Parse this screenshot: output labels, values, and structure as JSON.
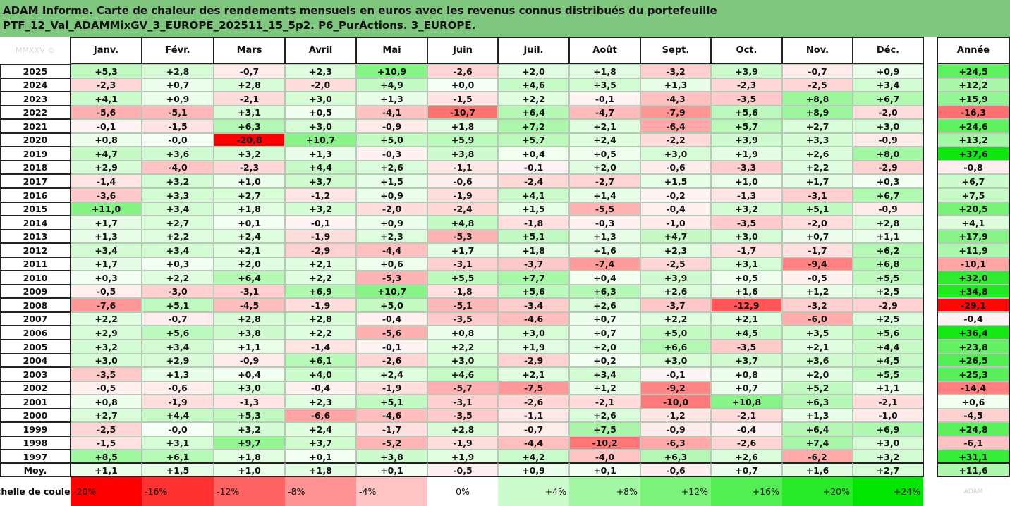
{
  "title": {
    "line1": "ADAM Informe. Carte de chaleur des rendements mensuels en euros avec les revenus connus distribués du portefeuille",
    "line2": "PTF_12_Val_ADAMMixGV_3_EUROPE_202511_15_5p2. P6_PurActions. 3_EUROPE."
  },
  "corner_label": "MMXXV ©",
  "months": [
    "Janv.",
    "Févr.",
    "Mars",
    "Avril",
    "Mai",
    "Juin",
    "Juil.",
    "Août",
    "Sept.",
    "Oct.",
    "Nov.",
    "Déc."
  ],
  "year_header": "Année",
  "avg_label": "Moy.",
  "scale_label": "Echelle de couleur",
  "logo_text": "ADAM",
  "colors": {
    "neg_max": "#ff0000",
    "neutral": "#ffffff",
    "pos_max": "#00e000",
    "header_bg": "#7fc77f"
  },
  "chart_data": {
    "type": "heatmap",
    "x_categories": [
      "Janv.",
      "Févr.",
      "Mars",
      "Avril",
      "Mai",
      "Juin",
      "Juil.",
      "Août",
      "Sept.",
      "Oct.",
      "Nov.",
      "Déc.",
      "Année"
    ],
    "rows": [
      {
        "label": "2025",
        "values": [
          "+5,3",
          "+2,8",
          "-0,7",
          "+2,3",
          "+10,9",
          "-2,6",
          "+2,0",
          "+1,8",
          "-3,2",
          "+3,9",
          "-0,7",
          "+0,9",
          "+24,5"
        ]
      },
      {
        "label": "2024",
        "values": [
          "-2,3",
          "+0,7",
          "+2,8",
          "-2,0",
          "+4,9",
          "+0,0",
          "+4,6",
          "+3,5",
          "+1,3",
          "-2,3",
          "-2,5",
          "+3,4",
          "+12,2"
        ]
      },
      {
        "label": "2023",
        "values": [
          "+4,1",
          "+0,9",
          "-2,1",
          "+3,0",
          "+1,3",
          "-1,5",
          "+2,2",
          "-0,1",
          "-4,3",
          "-3,5",
          "+8,8",
          "+6,7",
          "+15,9"
        ]
      },
      {
        "label": "2022",
        "values": [
          "-5,6",
          "-5,1",
          "+3,1",
          "+0,5",
          "-4,1",
          "-10,7",
          "+6,4",
          "-4,7",
          "-7,9",
          "+5,6",
          "+8,9",
          "-2,0",
          "-16,3"
        ]
      },
      {
        "label": "2021",
        "values": [
          "-0,1",
          "-1,5",
          "+6,3",
          "+3,0",
          "-0,9",
          "+1,8",
          "+7,2",
          "+2,1",
          "-6,4",
          "+5,7",
          "+2,7",
          "+3,0",
          "+24,6"
        ]
      },
      {
        "label": "2020",
        "values": [
          "+0,8",
          "-0,0",
          "-20,8",
          "+10,7",
          "+5,0",
          "+5,9",
          "+5,7",
          "+2,4",
          "-2,2",
          "+3,9",
          "+3,3",
          "-0,9",
          "+13,2"
        ]
      },
      {
        "label": "2019",
        "values": [
          "+4,7",
          "+3,6",
          "+3,2",
          "+1,3",
          "-0,3",
          "+3,8",
          "+0,4",
          "+0,5",
          "+3,0",
          "+1,9",
          "+2,6",
          "+8,0",
          "+37,6"
        ]
      },
      {
        "label": "2018",
        "values": [
          "+2,9",
          "-4,0",
          "-2,3",
          "+4,4",
          "+2,6",
          "-1,1",
          "-0,1",
          "+2,0",
          "-0,6",
          "-3,3",
          "+2,2",
          "-2,9",
          "-0,8"
        ]
      },
      {
        "label": "2017",
        "values": [
          "-1,4",
          "+3,2",
          "+1,0",
          "+3,7",
          "+1,5",
          "-0,6",
          "-2,4",
          "-2,7",
          "+1,5",
          "+1,0",
          "+1,7",
          "+0,3",
          "+6,7"
        ]
      },
      {
        "label": "2016",
        "values": [
          "-3,6",
          "+3,3",
          "+2,7",
          "-1,2",
          "+0,9",
          "-1,9",
          "+4,1",
          "+1,4",
          "-0,2",
          "-1,3",
          "-3,1",
          "+6,7",
          "+7,5"
        ]
      },
      {
        "label": "2015",
        "values": [
          "+11,0",
          "+3,4",
          "+1,8",
          "+3,2",
          "-2,0",
          "-2,4",
          "+1,5",
          "-5,5",
          "-0,4",
          "+3,2",
          "+5,1",
          "-0,9",
          "+20,5"
        ]
      },
      {
        "label": "2014",
        "values": [
          "+1,7",
          "+2,7",
          "+0,1",
          "-0,1",
          "+0,9",
          "+4,8",
          "-1,8",
          "-0,3",
          "-1,0",
          "-3,5",
          "-2,0",
          "+2,8",
          "+4,1"
        ]
      },
      {
        "label": "2013",
        "values": [
          "+1,3",
          "+2,2",
          "+2,4",
          "-1,9",
          "+2,3",
          "-5,3",
          "+5,1",
          "+1,3",
          "+4,7",
          "+3,0",
          "+0,7",
          "+1,1",
          "+17,9"
        ]
      },
      {
        "label": "2012",
        "values": [
          "+3,4",
          "+3,4",
          "+2,1",
          "-2,9",
          "-4,4",
          "+1,7",
          "+1,8",
          "+1,6",
          "+2,3",
          "-1,7",
          "-1,7",
          "+6,2",
          "+11,9"
        ]
      },
      {
        "label": "2011",
        "values": [
          "+1,7",
          "+0,3",
          "+2,0",
          "+2,1",
          "+0,6",
          "-3,1",
          "-3,7",
          "-7,4",
          "-2,5",
          "+3,1",
          "-9,4",
          "+6,8",
          "-10,1"
        ]
      },
      {
        "label": "2010",
        "values": [
          "+0,3",
          "+2,2",
          "+6,4",
          "+2,2",
          "-5,3",
          "+5,5",
          "+7,7",
          "+0,4",
          "+3,9",
          "+0,5",
          "-0,5",
          "+5,5",
          "+32,0"
        ]
      },
      {
        "label": "2009",
        "values": [
          "-0,5",
          "-3,0",
          "-3,1",
          "+6,9",
          "+10,7",
          "-1,8",
          "+5,6",
          "+6,3",
          "+2,6",
          "+1,6",
          "+1,2",
          "+2,5",
          "+34,8"
        ]
      },
      {
        "label": "2008",
        "values": [
          "-7,6",
          "+5,1",
          "-4,5",
          "-1,9",
          "+5,0",
          "-5,1",
          "-3,4",
          "+2,6",
          "-3,7",
          "-12,9",
          "-3,2",
          "-2,9",
          "-29,1"
        ]
      },
      {
        "label": "2007",
        "values": [
          "+2,2",
          "-0,7",
          "+2,8",
          "+2,8",
          "-0,4",
          "-3,5",
          "-4,6",
          "+0,7",
          "+2,2",
          "+2,1",
          "-6,0",
          "+2,5",
          "-0,4"
        ]
      },
      {
        "label": "2006",
        "values": [
          "+2,9",
          "+5,6",
          "+3,8",
          "+2,2",
          "-5,6",
          "+0,8",
          "+3,0",
          "+0,7",
          "+5,0",
          "+4,5",
          "+3,5",
          "+5,6",
          "+36,4"
        ]
      },
      {
        "label": "2005",
        "values": [
          "+3,2",
          "+3,4",
          "+1,1",
          "-1,4",
          "-0,1",
          "+2,2",
          "+1,9",
          "+2,0",
          "+6,6",
          "-3,5",
          "+2,1",
          "+4,4",
          "+23,8"
        ]
      },
      {
        "label": "2004",
        "values": [
          "+3,0",
          "+2,9",
          "-0,9",
          "+6,1",
          "-2,6",
          "+3,0",
          "-2,9",
          "+0,2",
          "+3,0",
          "+3,7",
          "+3,6",
          "+4,5",
          "+26,5"
        ]
      },
      {
        "label": "2003",
        "values": [
          "-3,5",
          "+1,3",
          "+0,4",
          "+4,0",
          "+2,4",
          "+4,6",
          "+2,1",
          "+3,4",
          "-0,1",
          "+0,8",
          "+2,0",
          "+5,5",
          "+25,3"
        ]
      },
      {
        "label": "2002",
        "values": [
          "-0,5",
          "-0,6",
          "+3,0",
          "-0,4",
          "-1,9",
          "-5,7",
          "-7,5",
          "+1,2",
          "-9,2",
          "+0,7",
          "+5,2",
          "+1,1",
          "-14,4"
        ]
      },
      {
        "label": "2001",
        "values": [
          "+0,8",
          "-1,9",
          "-1,3",
          "+2,3",
          "+5,1",
          "-3,1",
          "-2,6",
          "-2,1",
          "-10,0",
          "+10,8",
          "+6,3",
          "-2,1",
          "+0,6"
        ]
      },
      {
        "label": "2000",
        "values": [
          "+2,7",
          "+4,4",
          "+5,3",
          "-6,6",
          "-4,6",
          "-3,5",
          "-1,1",
          "+2,6",
          "-1,2",
          "-2,1",
          "+1,3",
          "-1,0",
          "-4,5"
        ]
      },
      {
        "label": "1999",
        "values": [
          "-2,5",
          "-0,0",
          "+3,2",
          "+2,4",
          "-1,7",
          "+2,8",
          "-0,7",
          "+7,5",
          "-0,9",
          "-0,4",
          "+6,4",
          "+6,9",
          "+24,8"
        ]
      },
      {
        "label": "1998",
        "values": [
          "-1,5",
          "+3,1",
          "+9,7",
          "+3,7",
          "-5,2",
          "-1,9",
          "-4,4",
          "-10,2",
          "-6,3",
          "-2,6",
          "+7,4",
          "+3,0",
          "-6,1"
        ]
      },
      {
        "label": "1997",
        "values": [
          "+8,5",
          "+6,1",
          "+1,8",
          "+0,1",
          "+3,8",
          "+1,9",
          "+4,2",
          "-4,0",
          "+6,3",
          "+2,6",
          "-6,2",
          "+3,2",
          "+31,1"
        ]
      }
    ],
    "average_row": {
      "label": "Moy.",
      "values": [
        "+1,1",
        "+1,5",
        "+1,0",
        "+1,8",
        "+0,1",
        "-0,5",
        "+0,9",
        "+0,1",
        "-0,6",
        "+0,7",
        "+1,6",
        "+2,7",
        "+11,6"
      ]
    },
    "color_scale": {
      "labels": [
        "-20%",
        "-16%",
        "-12%",
        "-8%",
        "-4%",
        "0%",
        "+4%",
        "+8%",
        "+12%",
        "+16%",
        "+20%",
        "+24%"
      ],
      "values": [
        -20,
        -16,
        -12,
        -8,
        -4,
        0,
        4,
        8,
        12,
        16,
        20,
        24
      ]
    }
  }
}
